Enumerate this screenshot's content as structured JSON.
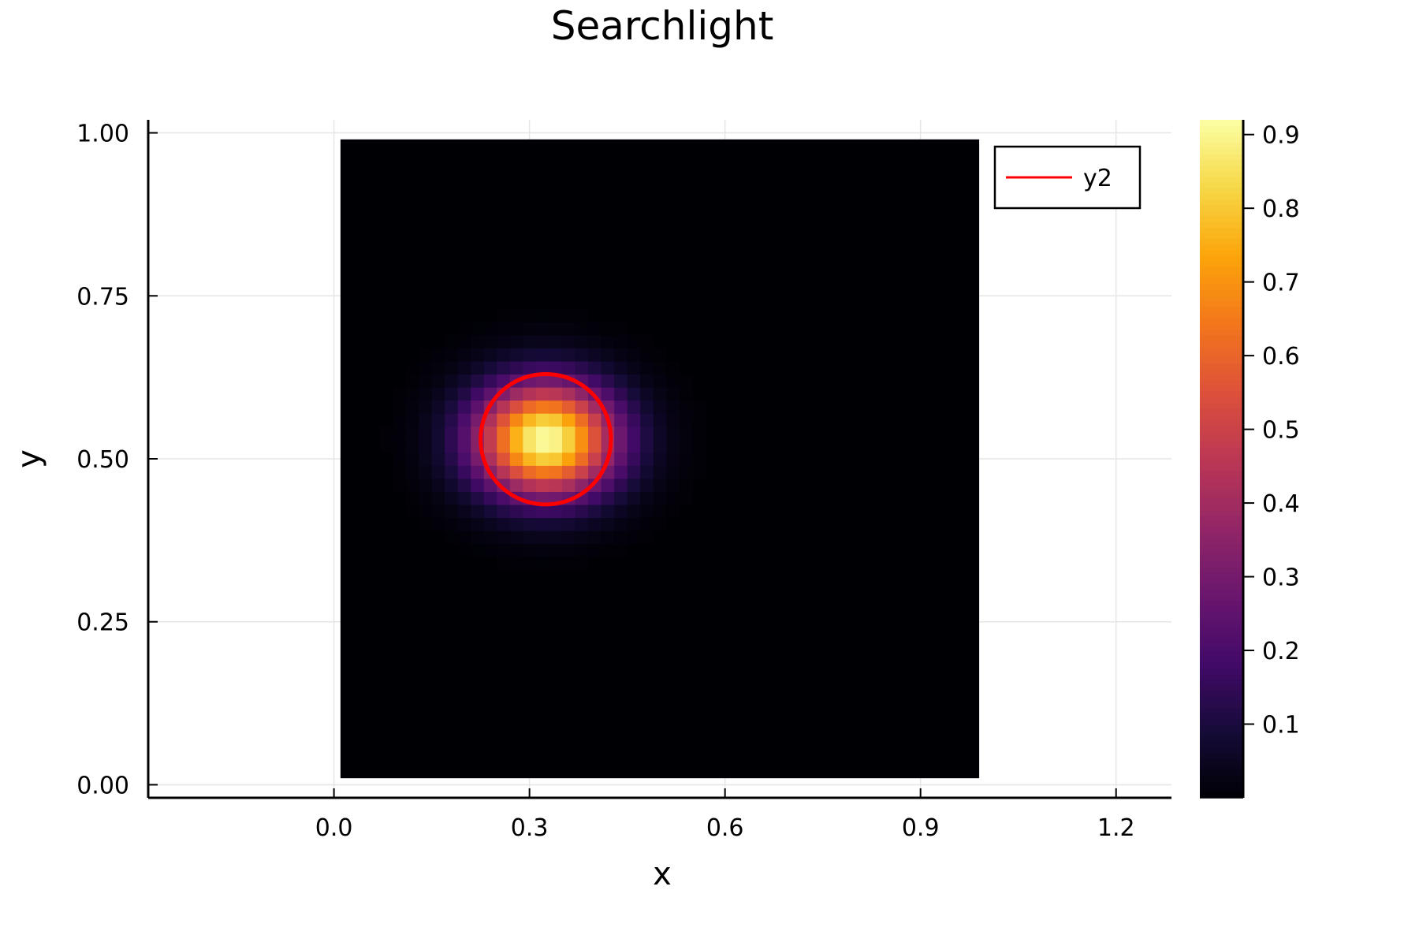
{
  "chart_data": {
    "type": "heatmap",
    "title": "Searchlight",
    "xlabel": "x",
    "ylabel": "y",
    "xlim": [
      -0.285,
      1.285
    ],
    "ylim": [
      -0.02,
      1.02
    ],
    "xticks": [
      0.0,
      0.3,
      0.6,
      0.9,
      1.2
    ],
    "xtick_labels": [
      "0.0",
      "0.3",
      "0.6",
      "0.9",
      "1.2"
    ],
    "yticks": [
      0.0,
      0.25,
      0.5,
      0.75,
      1.0
    ],
    "ytick_labels": [
      "0.00",
      "0.25",
      "0.50",
      "0.75",
      "1.00"
    ],
    "grid": true,
    "heatmap": {
      "x_range": [
        0.01,
        0.99
      ],
      "y_range": [
        0.01,
        0.99
      ],
      "nx": 49,
      "ny": 49,
      "peak_value": 0.92,
      "peak_center": [
        0.325,
        0.53
      ],
      "spread": [
        0.075,
        0.06
      ],
      "colormap": "inferno",
      "background": "#000004"
    },
    "colorbar": {
      "range": [
        0.0,
        0.92
      ],
      "ticks": [
        0.1,
        0.2,
        0.3,
        0.4,
        0.5,
        0.6,
        0.7,
        0.8,
        0.9
      ],
      "tick_labels": [
        "0.1",
        "0.2",
        "0.3",
        "0.4",
        "0.5",
        "0.6",
        "0.7",
        "0.8",
        "0.9"
      ]
    },
    "series": [
      {
        "name": "y2",
        "type": "circle",
        "center": [
          0.325,
          0.53
        ],
        "radius": 0.1,
        "color": "#ff0000"
      }
    ],
    "legend_position": "top-right"
  }
}
